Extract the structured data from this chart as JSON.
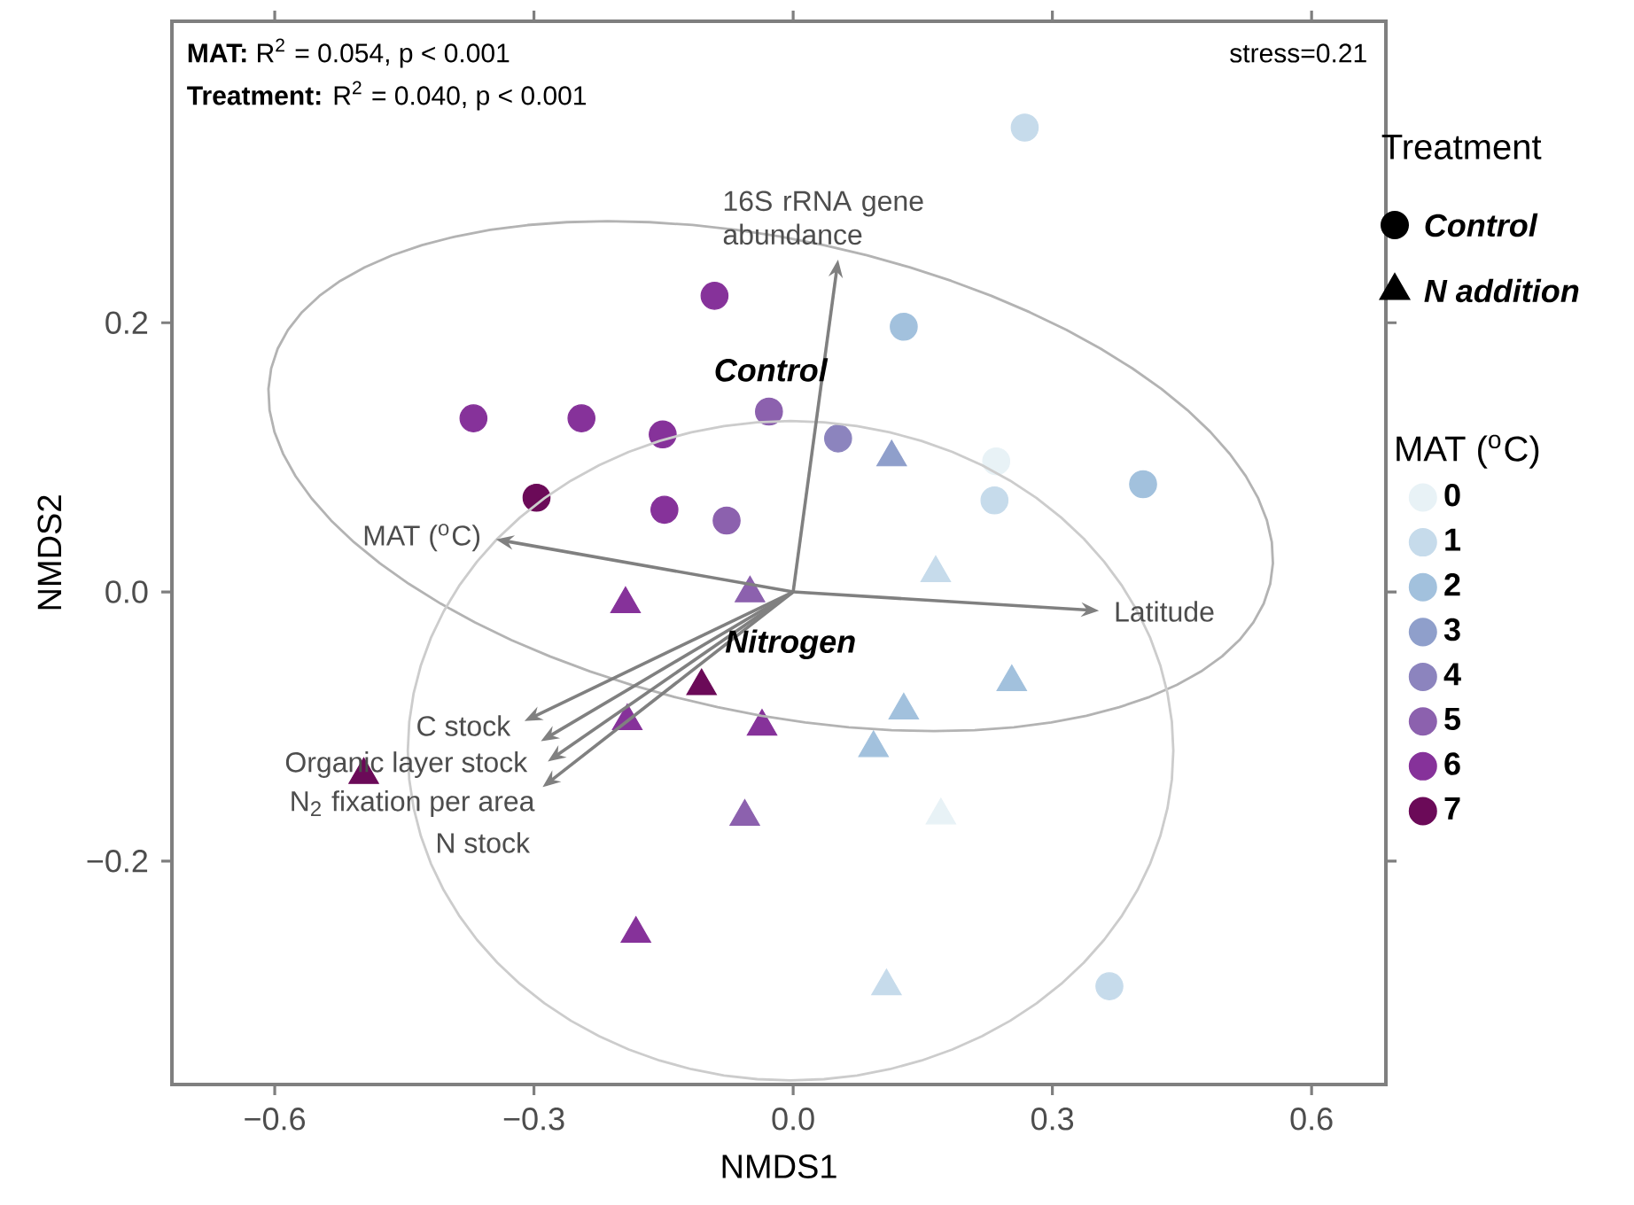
{
  "chart_data": {
    "type": "scatter",
    "xlabel": "NMDS1",
    "ylabel": "NMDS2",
    "xlim": [
      -0.719,
      0.686
    ],
    "ylim": [
      -0.366,
      0.424
    ],
    "xticks": [
      {
        "value": -0.6,
        "label": "−0.6"
      },
      {
        "value": -0.3,
        "label": "−0.3"
      },
      {
        "value": 0.0,
        "label": "0.0"
      },
      {
        "value": 0.3,
        "label": "0.3"
      },
      {
        "value": 0.6,
        "label": "0.6"
      }
    ],
    "yticks": [
      {
        "value": -0.2,
        "label": "−0.2"
      },
      {
        "value": 0.0,
        "label": "0.0"
      },
      {
        "value": 0.2,
        "label": "0.2"
      }
    ],
    "legend": "right",
    "legend_title": "MAT ($^{o}$C)",
    "series": [
      {
        "name": "0",
        "marker": "circle",
        "color": "#e8f2f6",
        "x": [
          0.235
        ],
        "values": [
          0.097
        ]
      },
      {
        "name": "1",
        "marker": "circle",
        "color": "#c6dbeb",
        "x": [
          0.268,
          0.233,
          0.366
        ],
        "values": [
          0.345,
          0.068,
          -0.293
        ]
      },
      {
        "name": "2",
        "marker": "circle",
        "color": "#a2c1dd",
        "x": [
          0.128,
          0.405
        ],
        "values": [
          0.197,
          0.08
        ]
      },
      {
        "name": "3",
        "marker": "triangle",
        "color": "#8f9fcb",
        "x": [
          0.114
        ],
        "values": [
          0.1
        ]
      },
      {
        "name": "4",
        "marker": "circle",
        "color": "#8c84be",
        "x": [
          0.052
        ],
        "values": [
          0.114
        ]
      },
      {
        "name": "5",
        "marker": "circle",
        "color": "#8c61ae",
        "x": [
          -0.028,
          -0.077
        ],
        "values": [
          0.134,
          0.053
        ]
      },
      {
        "name": "6",
        "marker": "circle",
        "color": "#86329a",
        "x": [
          -0.091,
          -0.37,
          -0.245,
          -0.151,
          -0.149
        ],
        "values": [
          0.22,
          0.129,
          0.129,
          0.117,
          0.061
        ]
      },
      {
        "name": "7",
        "marker": "circle",
        "color": "#6b0a58",
        "x": [
          -0.297
        ],
        "values": [
          0.07
        ]
      },
      {
        "marker": "triangle",
        "color": "#e8f2f6",
        "x": [
          0.171
        ],
        "values": [
          -0.166
        ]
      },
      {
        "marker": "triangle",
        "color": "#c6dbeb",
        "x": [
          0.165,
          0.108
        ],
        "values": [
          0.014,
          -0.293
        ]
      },
      {
        "marker": "triangle",
        "color": "#a2c1dd",
        "x": [
          0.253,
          0.128,
          0.093
        ],
        "values": [
          -0.067,
          -0.088,
          -0.116
        ]
      },
      {
        "marker": "triangle",
        "color": "#8c61ae",
        "x": [
          -0.05,
          -0.056
        ],
        "values": [
          -0.001,
          -0.167
        ]
      },
      {
        "marker": "triangle",
        "color": "#86329a",
        "x": [
          -0.194,
          -0.192,
          -0.036,
          -0.182
        ],
        "values": [
          -0.009,
          -0.096,
          -0.1,
          -0.254
        ]
      },
      {
        "marker": "triangle",
        "color": "#6b0a58",
        "x": [
          -0.106,
          -0.497
        ],
        "values": [
          -0.07,
          -0.136
        ]
      }
    ],
    "annotations": [
      "**MAT:** R$^{2}$ = 0.054, p < 0.001",
      "**Treatment:** R$^{2}$ = 0.040, p < 0.001",
      "stress=0.21",
      "Control",
      "Nitrogen",
      "Treatment",
      "Control",
      "N addition",
      "16S rRNA gene abundance",
      "MAT ($^{o}$C)",
      "Latitude",
      "C stock",
      "Organic layer stock",
      "N$_{2}$ fixation per area",
      "N stock"
    ]
  }
}
